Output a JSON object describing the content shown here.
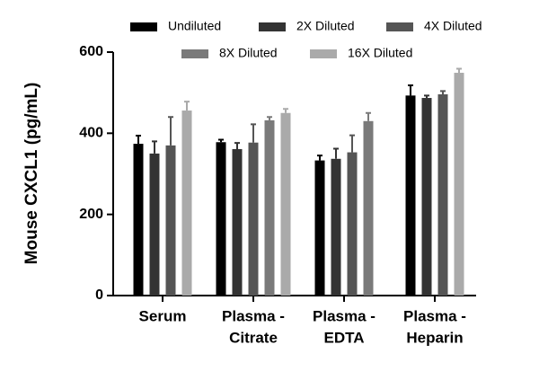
{
  "chart_data": {
    "type": "bar",
    "y_label": "Mouse CXCL1 (pg/mL)",
    "categories": [
      [
        "Serum"
      ],
      [
        "Plasma -",
        "Citrate"
      ],
      [
        "Plasma -",
        "EDTA"
      ],
      [
        "Plasma -",
        "Heparin"
      ]
    ],
    "series": [
      {
        "name": "Undiluted",
        "color": "#000000",
        "values": [
          374,
          378,
          333,
          493
        ],
        "errors": [
          20,
          6,
          12,
          25
        ]
      },
      {
        "name": "2X Diluted",
        "color": "#333333",
        "values": [
          350,
          361,
          337,
          487
        ],
        "errors": [
          30,
          15,
          25,
          6
        ]
      },
      {
        "name": "4X Diluted",
        "color": "#555555",
        "values": [
          370,
          377,
          353,
          496
        ],
        "errors": [
          70,
          45,
          42,
          8
        ]
      },
      {
        "name": "8X Diluted",
        "color": "#7a7a7a",
        "values": [
          null,
          432,
          430,
          null
        ],
        "errors": [
          null,
          8,
          20,
          null
        ]
      },
      {
        "name": "16X Diluted",
        "color": "#aaaaaa",
        "values": [
          456,
          450,
          null,
          549
        ],
        "errors": [
          22,
          10,
          null,
          10
        ]
      }
    ],
    "ylim": [
      0,
      600
    ],
    "yticks": [
      0,
      200,
      400,
      600
    ]
  }
}
